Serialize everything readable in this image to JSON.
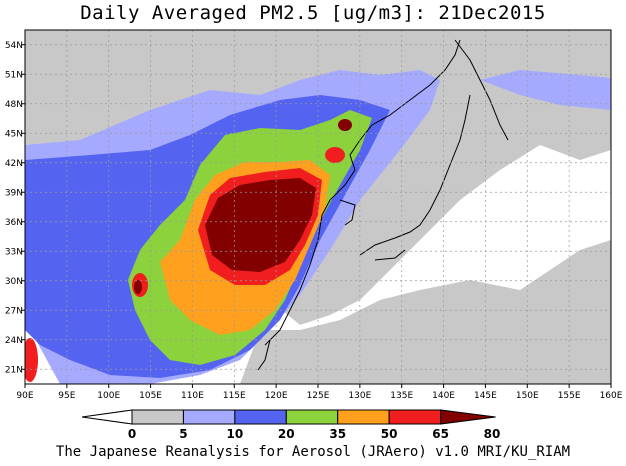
{
  "title": "Daily Averaged PM2.5 [ug/m3]: 21Dec2015",
  "footer": "The Japanese Reanalysis for Aerosol (JRAero) v1.0 MRI/KU_RIAM",
  "map": {
    "lon_range": [
      90,
      160
    ],
    "lat_range": [
      19.5,
      55.5
    ],
    "lon_ticks": [
      "90E",
      "95E",
      "100E",
      "105E",
      "110E",
      "115E",
      "120E",
      "125E",
      "130E",
      "135E",
      "140E",
      "145E",
      "150E",
      "155E",
      "160E"
    ],
    "lat_ticks": [
      "54N",
      "51N",
      "48N",
      "45N",
      "42N",
      "39N",
      "36N",
      "33N",
      "30N",
      "27N",
      "24N",
      "21N"
    ],
    "grid": true
  },
  "colorbar": {
    "labels": [
      "0",
      "5",
      "10",
      "20",
      "35",
      "50",
      "65",
      "80"
    ],
    "colors": [
      "#ffffff",
      "#c8c8c8",
      "#a5aaff",
      "#5564f0",
      "#8cd23c",
      "#ffa01e",
      "#f01e1e",
      "#820000"
    ]
  }
}
